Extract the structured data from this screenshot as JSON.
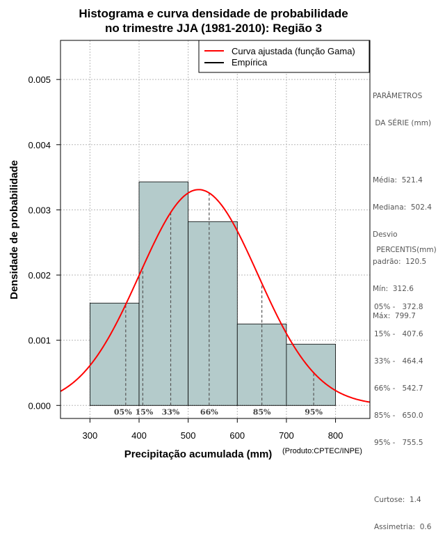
{
  "chart_data": {
    "type": "histogram",
    "title": [
      "Histograma e curva densidade de probabilidade",
      "no trimestre JJA (1981-2010): Região 3"
    ],
    "xlabel": "Precipitação acumulada (mm)",
    "ylabel": "Densidade de probabilidade",
    "credit": "(Produto:CPTEC/INPE)",
    "xlim": [
      240,
      870
    ],
    "ylim": [
      -0.0002,
      0.0056
    ],
    "x_ticks": [
      300,
      400,
      500,
      600,
      700,
      800
    ],
    "y_ticks": [
      0.0,
      0.001,
      0.002,
      0.003,
      0.004,
      0.005
    ],
    "y_tick_labels": [
      "0.000",
      "0.001",
      "0.002",
      "0.003",
      "0.004",
      "0.005"
    ],
    "grid": true,
    "bins": [
      {
        "x0": 300,
        "x1": 400,
        "density": 0.00157
      },
      {
        "x0": 400,
        "x1": 500,
        "density": 0.00343
      },
      {
        "x0": 500,
        "x1": 600,
        "density": 0.00282
      },
      {
        "x0": 600,
        "x1": 700,
        "density": 0.00125
      },
      {
        "x0": 700,
        "x1": 800,
        "density": 0.00094
      }
    ],
    "bar_color": "#b4cbcb",
    "curve": {
      "name": "Curva ajustada (função Gama)",
      "color": "#ff0000",
      "mean": 521.4,
      "sd": 120.5
    },
    "empirical": {
      "name": "Empírica",
      "color": "#000000"
    },
    "percentiles": [
      {
        "label": "05%",
        "value": 372.8
      },
      {
        "label": "15%",
        "value": 407.6
      },
      {
        "label": "33%",
        "value": 464.4
      },
      {
        "label": "66%",
        "value": 542.7
      },
      {
        "label": "85%",
        "value": 650.0
      },
      {
        "label": "95%",
        "value": 755.5
      }
    ],
    "legend_position": "top-right"
  },
  "side_panel": {
    "params_heading": [
      "PARÂMETROS",
      " DA SÉRIE (mm)"
    ],
    "params": [
      "Média:  521.4",
      "Mediana:  502.4",
      "Desvio",
      "padrão:  120.5",
      "Mín:  312.6",
      "Máx:  799.7"
    ],
    "percentis_heading": " PERCENTIS(mm)",
    "percentis": [
      "05% -   372.8",
      "15% -   407.6",
      "33% -   464.4",
      "66% -   542.7",
      "85% -   650.0",
      "95% -   755.5"
    ],
    "stats": [
      "Curtose:  1.4",
      "Assimetria:  0.6"
    ]
  }
}
